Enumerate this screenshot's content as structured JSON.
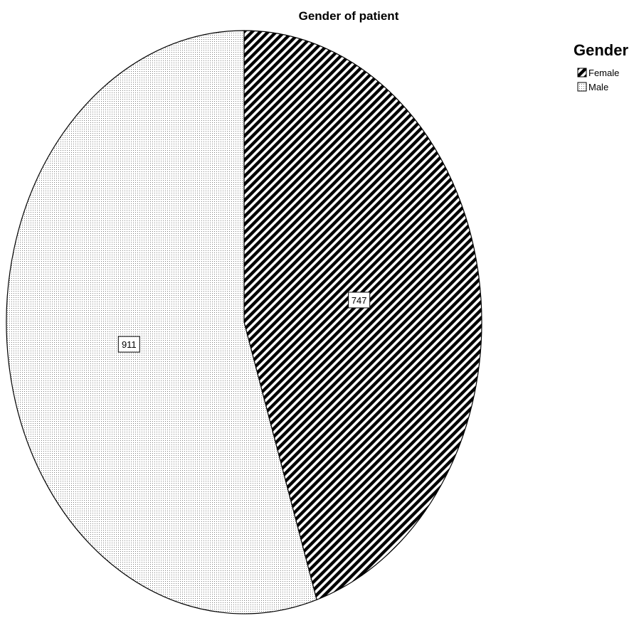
{
  "chart_data": {
    "type": "pie",
    "title": "Gender of patient",
    "legend_title": "Gender",
    "legend_position": "top-right",
    "categories": [
      "Female",
      "Male"
    ],
    "values": [
      747,
      911
    ],
    "data_labels": [
      "747",
      "911"
    ],
    "patterns": [
      "diagonal-hatch",
      "dotted"
    ],
    "colors": {
      "outline": "#000000",
      "background": "#ffffff",
      "hatch": "#000000"
    }
  }
}
